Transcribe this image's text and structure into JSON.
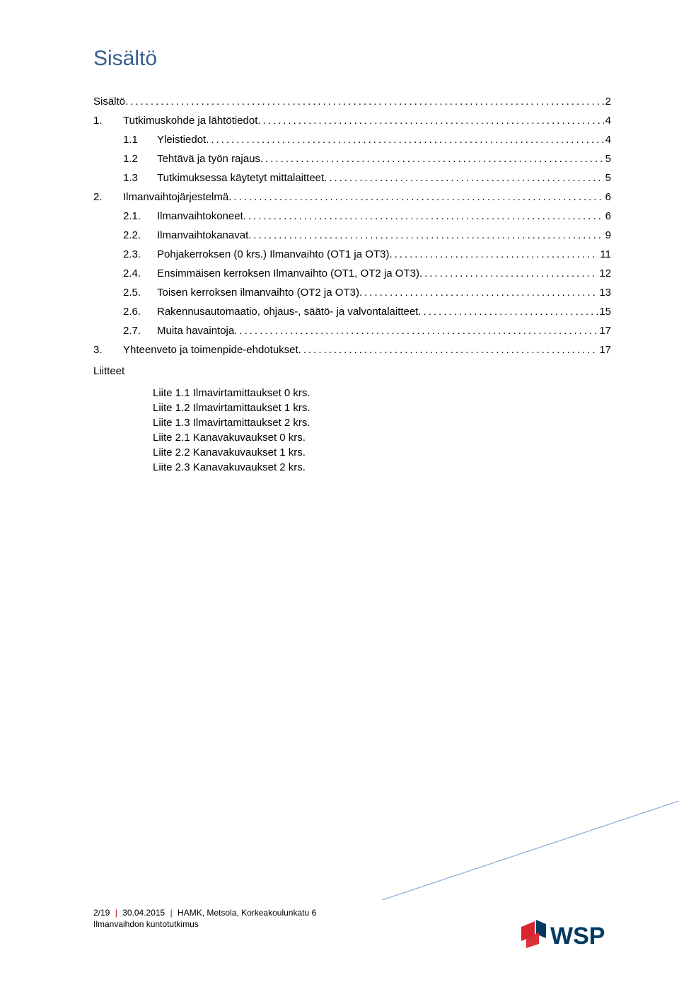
{
  "title": "Sisältö",
  "toc": {
    "entries": [
      {
        "level": 1,
        "num": "",
        "label": "Sisältö",
        "page": "2",
        "indent": "lvl1"
      },
      {
        "level": 1,
        "num": "1.",
        "label": "Tutkimuskohde ja lähtötiedot",
        "page": "4",
        "indent": "lvl1"
      },
      {
        "level": 2,
        "num": "1.1",
        "label": "Yleistiedot",
        "page": "4",
        "indent": "lvl2"
      },
      {
        "level": 2,
        "num": "1.2",
        "label": "Tehtävä ja työn rajaus",
        "page": "5",
        "indent": "lvl2"
      },
      {
        "level": 2,
        "num": "1.3",
        "label": "Tutkimuksessa käytetyt mittalaitteet",
        "page": "5",
        "indent": "lvl2"
      },
      {
        "level": 1,
        "num": "2.",
        "label": "Ilmanvaihtojärjestelmä",
        "page": "6",
        "indent": "lvl1"
      },
      {
        "level": 2,
        "num": "2.1.",
        "label": "Ilmanvaihtokoneet",
        "page": "6",
        "indent": "lvl2"
      },
      {
        "level": 2,
        "num": "2.2.",
        "label": "Ilmanvaihtokanavat",
        "page": "9",
        "indent": "lvl2"
      },
      {
        "level": 2,
        "num": "2.3.",
        "label": "Pohjakerroksen (0 krs.) Ilmanvaihto (OT1 ja OT3)",
        "page": "11",
        "indent": "lvl2"
      },
      {
        "level": 2,
        "num": "2.4.",
        "label": "Ensimmäisen kerroksen Ilmanvaihto (OT1, OT2 ja OT3)",
        "page": "12",
        "indent": "lvl2"
      },
      {
        "level": 2,
        "num": "2.5.",
        "label": "Toisen kerroksen ilmanvaihto (OT2 ja OT3)",
        "page": "13",
        "indent": "lvl2"
      },
      {
        "level": 2,
        "num": "2.6.",
        "label": "Rakennusautomaatio, ohjaus-, säätö- ja valvontalaitteet",
        "page": "15",
        "indent": "lvl2"
      },
      {
        "level": 2,
        "num": "2.7.",
        "label": "Muita havaintoja",
        "page": "17",
        "indent": "lvl2"
      },
      {
        "level": 1,
        "num": "3.",
        "label": "Yhteenveto ja toimenpide-ehdotukset",
        "page": "17",
        "indent": "lvl1"
      }
    ]
  },
  "liitteet_heading": "Liitteet",
  "liitteet": [
    "Liite 1.1 Ilmavirtamittaukset 0 krs.",
    "Liite 1.2 Ilmavirtamittaukset 1 krs.",
    "Liite 1.3 Ilmavirtamittaukset 2 krs.",
    "Liite 2.1 Kanavakuvaukset 0 krs.",
    "Liite 2.2 Kanavakuvaukset 1 krs.",
    "Liite 2.3 Kanavakuvaukset 2 krs."
  ],
  "footer": {
    "page_info": "2/19",
    "date": "30.04.2015",
    "project": "HAMK, Metsola, Korkeakoulunkatu 6",
    "line2": "Ilmanvaihdon kuntotutkimus"
  },
  "colors": {
    "title": "#365f91",
    "separator": "#c00000",
    "diagonal": "#8aa9d6",
    "logo_red": "#d9262e",
    "logo_blue": "#003a63",
    "text": "#000000",
    "background": "#ffffff"
  },
  "logo_text": "WSP"
}
